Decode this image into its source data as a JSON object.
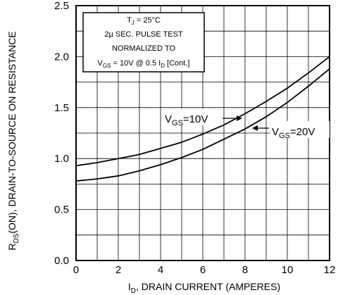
{
  "chart_data": {
    "type": "line",
    "xlim": [
      0,
      12
    ],
    "ylim": [
      0.0,
      2.5
    ],
    "x_ticks": [
      "0",
      "2",
      "4",
      "6",
      "8",
      "10",
      "12"
    ],
    "y_ticks": [
      "0.0",
      "0.5",
      "1.0",
      "1.5",
      "2.0",
      "2.5"
    ],
    "grid": true,
    "xlabel": {
      "main": "I",
      "sub": "D",
      "rest": ", DRAIN CURRENT (AMPERES)"
    },
    "ylabel": {
      "main": "R",
      "sub": "DS",
      "rest": "(ON), DRAIN-TO-SOURCE ON RESISTANCE"
    },
    "annotation": {
      "line1": {
        "main": "T",
        "sub": "J",
        "rest": " = 25°C"
      },
      "line2": "2µ SEC. PULSE TEST",
      "line3": "NORMALIZED TO",
      "line4": {
        "p1": "V",
        "s1": "GS",
        "p2": " = 10V  @  0.5  I",
        "s2": "D",
        "p3": " [Cont.]"
      }
    },
    "series": [
      {
        "name": {
          "main": "V",
          "sub": "GS",
          "rest": "=10V"
        },
        "x": [
          0,
          1,
          2,
          3,
          4,
          5,
          6,
          7,
          8,
          9,
          10,
          11,
          12
        ],
        "y": [
          0.93,
          0.96,
          1.0,
          1.04,
          1.1,
          1.16,
          1.24,
          1.33,
          1.44,
          1.56,
          1.69,
          1.84,
          2.0
        ]
      },
      {
        "name": {
          "main": "V",
          "sub": "GS",
          "rest": "=20V"
        },
        "x": [
          0,
          1,
          2,
          3,
          4,
          5,
          6,
          7,
          8,
          9,
          10,
          11,
          12
        ],
        "y": [
          0.78,
          0.8,
          0.83,
          0.88,
          0.94,
          1.01,
          1.09,
          1.19,
          1.29,
          1.41,
          1.55,
          1.71,
          1.88
        ]
      }
    ]
  }
}
